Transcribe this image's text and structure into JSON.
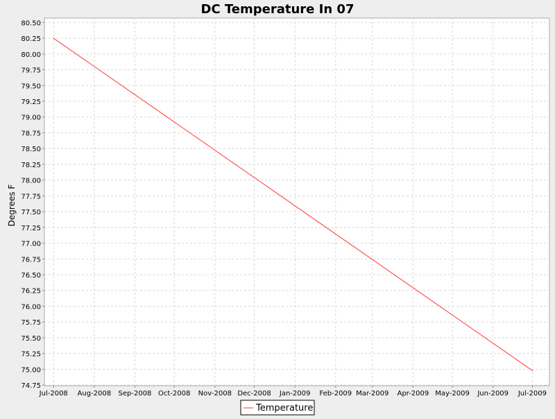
{
  "chart_data": {
    "type": "line",
    "title": "DC Temperature In 07",
    "xlabel": "",
    "ylabel": "Degrees F",
    "x_tick_labels": [
      "Jul-2008",
      "Aug-2008",
      "Sep-2008",
      "Oct-2008",
      "Nov-2008",
      "Dec-2008",
      "Jan-2009",
      "Feb-2009",
      "Mar-2009",
      "Apr-2009",
      "May-2009",
      "Jun-2009",
      "Jul-2009"
    ],
    "x_ticks": [
      "2008-07-01",
      "2008-08-01",
      "2008-09-01",
      "2008-10-01",
      "2008-11-01",
      "2008-12-01",
      "2009-01-01",
      "2009-02-01",
      "2009-03-01",
      "2009-04-01",
      "2009-05-01",
      "2009-06-01",
      "2009-07-01"
    ],
    "y_tick_labels": [
      "74.75",
      "75.00",
      "75.25",
      "75.50",
      "75.75",
      "76.00",
      "76.25",
      "76.50",
      "76.75",
      "77.00",
      "77.25",
      "77.50",
      "77.75",
      "78.00",
      "78.25",
      "78.50",
      "78.75",
      "79.00",
      "79.25",
      "79.50",
      "79.75",
      "80.00",
      "80.25",
      "80.50"
    ],
    "xlim": [
      "2008-06-24",
      "2009-07-14"
    ],
    "ylim": [
      74.74,
      80.57
    ],
    "grid": true,
    "legend": "bottom-center",
    "series": [
      {
        "name": "Temperature",
        "color": "#ff5555",
        "points": [
          {
            "x": "2008-07-01",
            "y": 80.25
          },
          {
            "x": "2009-07-01",
            "y": 74.98
          }
        ]
      }
    ]
  }
}
